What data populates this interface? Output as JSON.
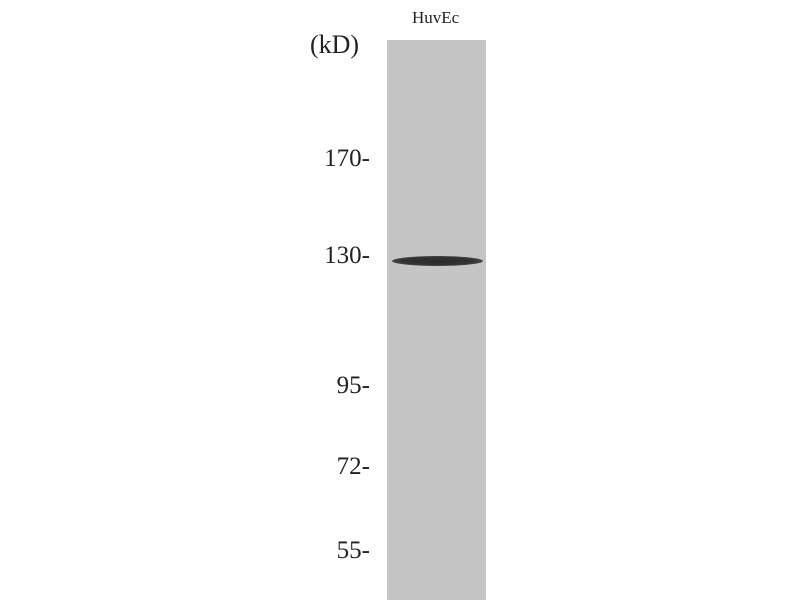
{
  "lane_labels": [
    "HuvEc"
  ],
  "unit_label": "(kD)",
  "markers": [
    {
      "label": "170-",
      "kd": 170
    },
    {
      "label": "130-",
      "kd": 130
    },
    {
      "label": "95-",
      "kd": 95
    },
    {
      "label": "72-",
      "kd": 72
    },
    {
      "label": "55-",
      "kd": 55
    }
  ],
  "bands": [
    {
      "lane": "HuvEc",
      "kd": 130,
      "intensity": "strong"
    }
  ],
  "colors": {
    "membrane": "#c5c5c5",
    "band": "#2a2a2a"
  }
}
